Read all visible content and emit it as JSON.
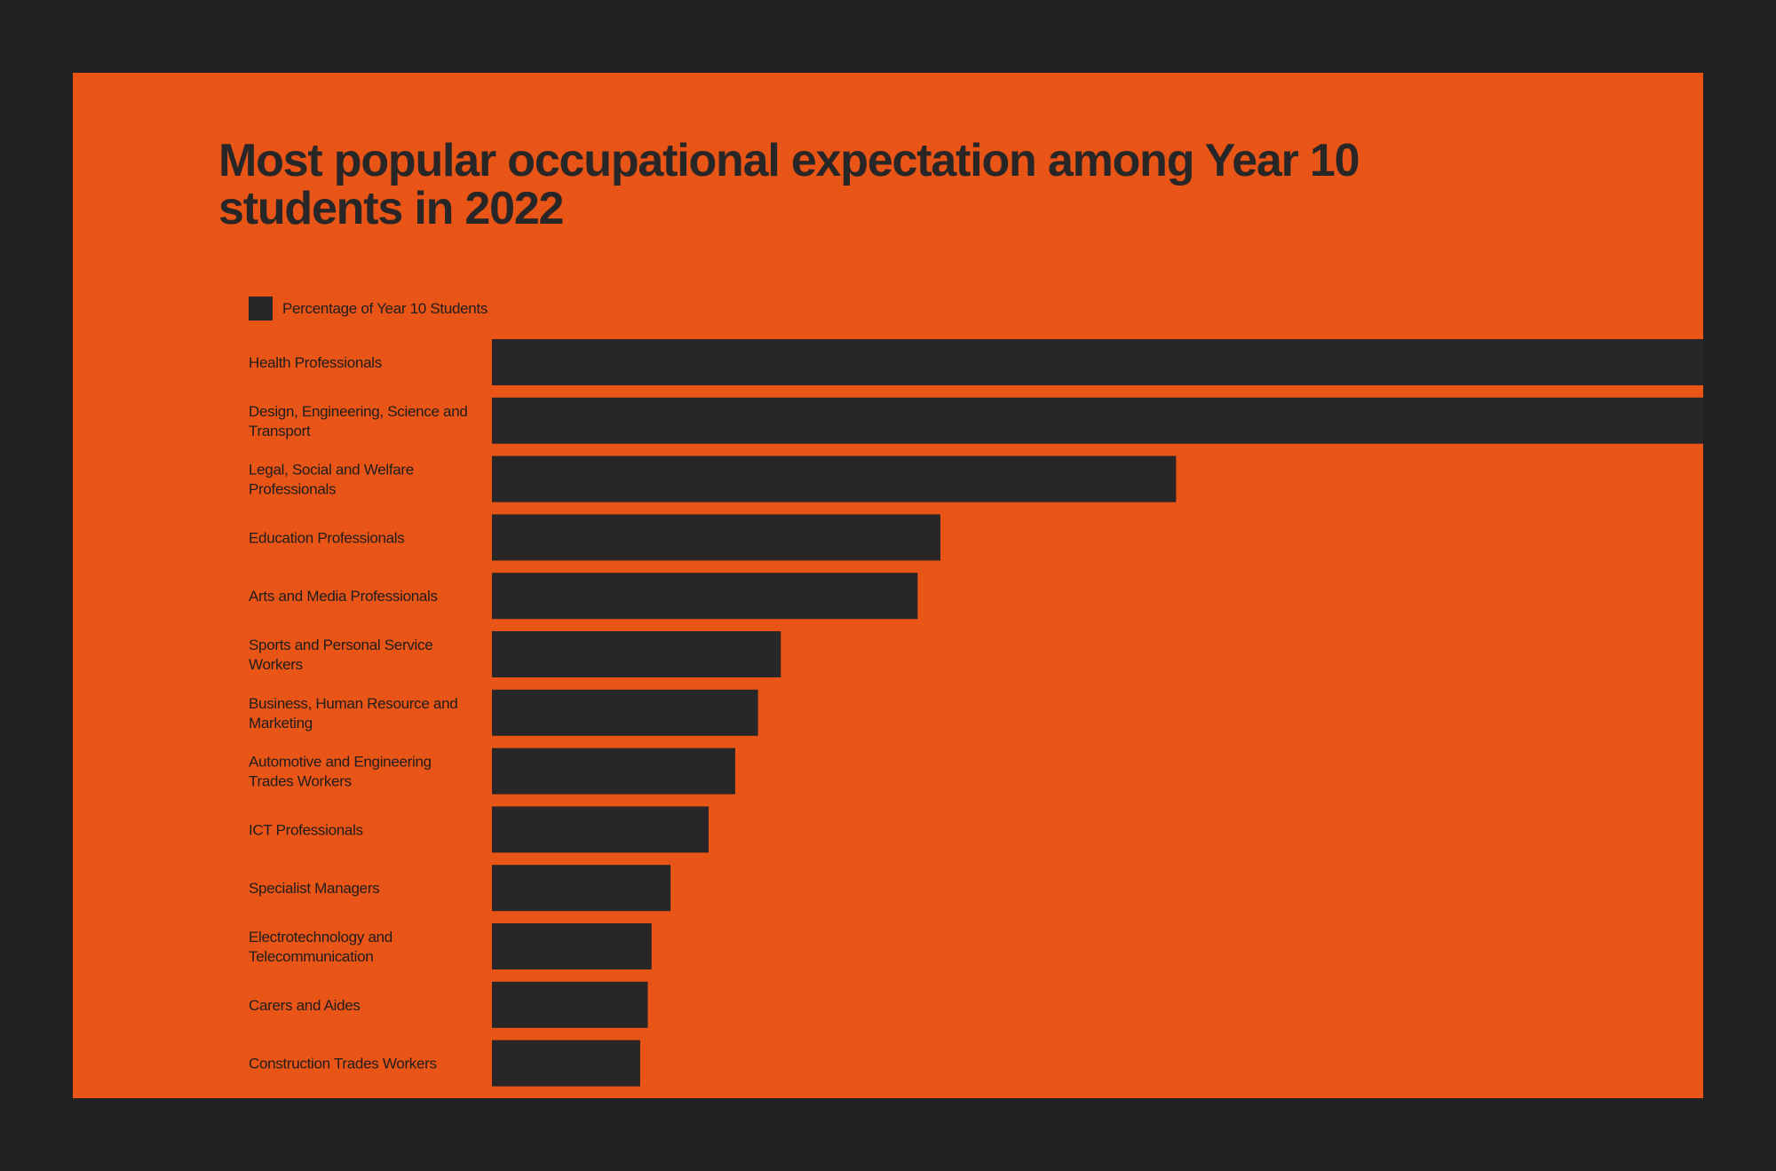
{
  "chart_data": {
    "type": "bar",
    "orientation": "horizontal",
    "title": "Most popular occupational expectation among Year 10 students in 2022",
    "legend": {
      "position": "top-left",
      "entries": [
        "Percentage of Year 10 Students"
      ]
    },
    "series": [
      {
        "name": "Percentage of Year 10 Students",
        "color": "#282626",
        "values": [
          16.8,
          16.4,
          9.0,
          5.9,
          5.6,
          3.8,
          3.5,
          3.2,
          2.85,
          2.35,
          2.1,
          2.05,
          1.95
        ]
      }
    ],
    "categories": [
      [
        "Health Professionals"
      ],
      [
        "Design, Engineering, Science and",
        "Transport"
      ],
      [
        "Legal, Social and Welfare",
        "Professionals"
      ],
      [
        "Education Professionals"
      ],
      [
        "Arts and Media Professionals"
      ],
      [
        "Sports and Personal Service",
        "Workers"
      ],
      [
        "Business, Human Resource and",
        "Marketing"
      ],
      [
        "Automotive and Engineering",
        "Trades Workers"
      ],
      [
        "ICT Professionals"
      ],
      [
        "Specialist Managers"
      ],
      [
        "Electrotechnology and",
        "Telecommunication"
      ],
      [
        "Carers and Aides"
      ],
      [
        "Construction Trades Workers"
      ]
    ],
    "xlim": [
      0,
      20
    ],
    "axes_visible": false,
    "grid": false
  },
  "colors": {
    "background": "#222122",
    "panel": "#e85516",
    "bar": "#282626",
    "text": "#1f1d1d"
  }
}
